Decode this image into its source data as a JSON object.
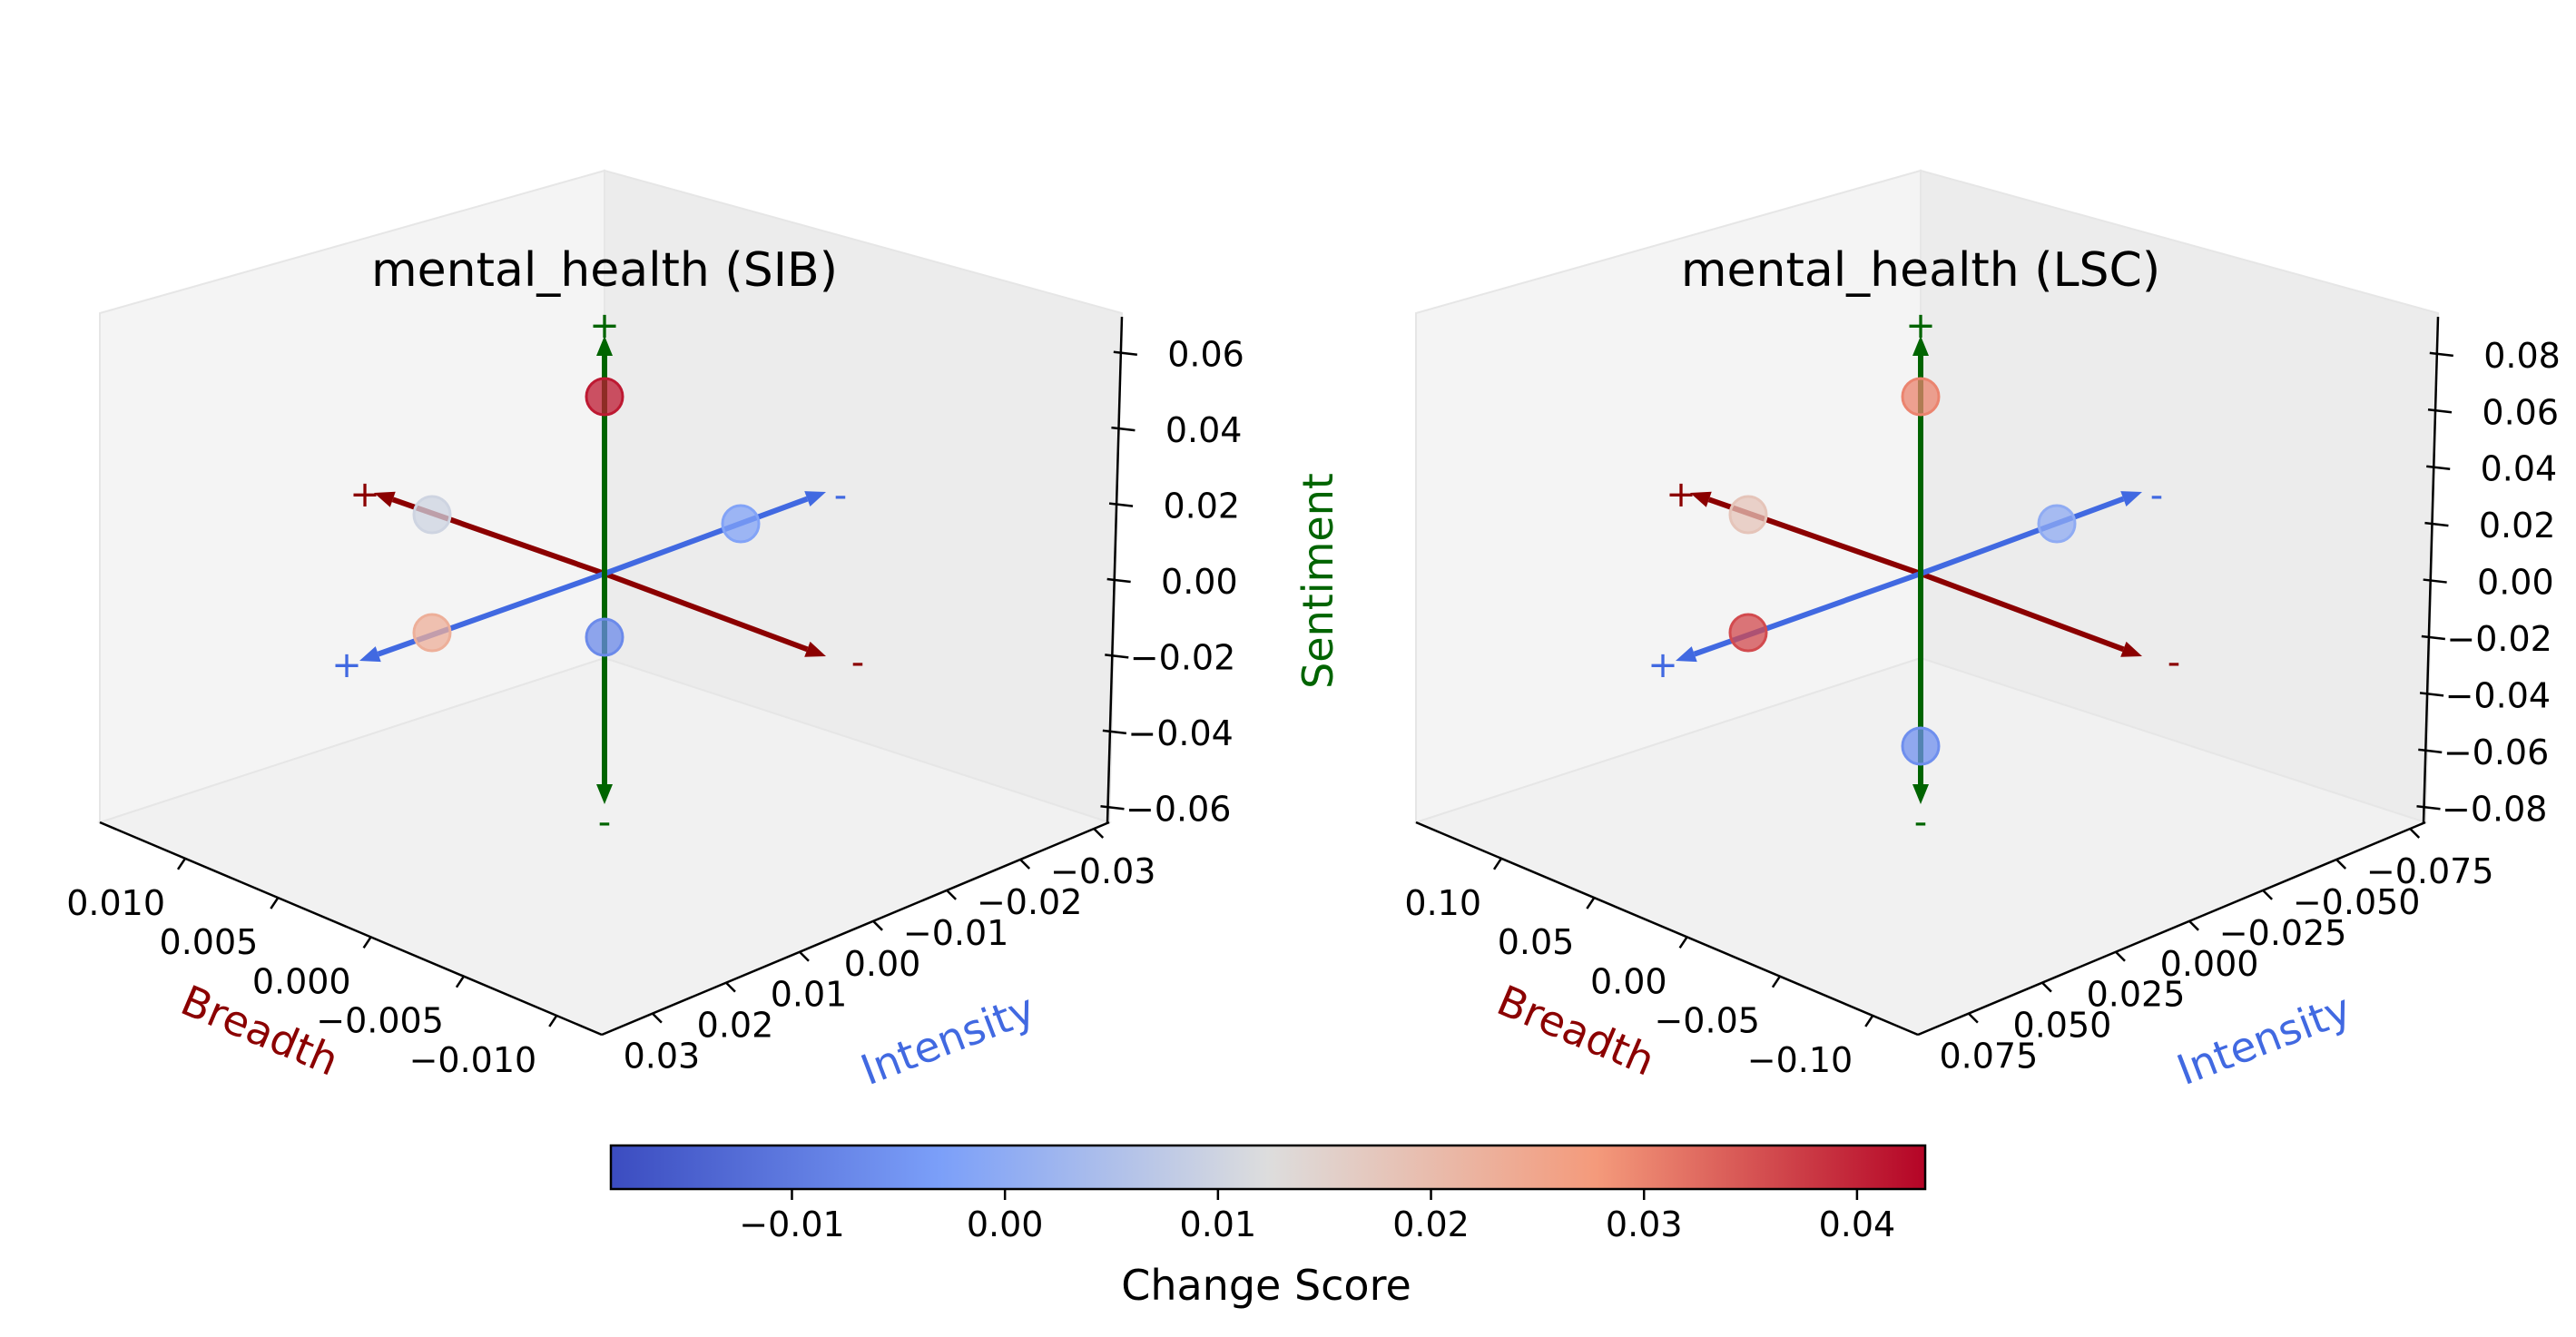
{
  "chart_data": [
    {
      "type": "scatter",
      "subtype": "3d",
      "title": "mental_health (SIB)",
      "axis_labels": {
        "breadth": "Breadth",
        "intensity": "Intensity",
        "sentiment": "Sentiment"
      },
      "axis_colors": {
        "breadth": "#8b0000",
        "intensity": "#4169e1",
        "sentiment": "#006400"
      },
      "sign_labels": {
        "plus": "+",
        "minus": "-"
      },
      "breadth_ticks": [
        "0.010",
        "0.005",
        "0.000",
        "−0.005",
        "−0.010"
      ],
      "intensity_ticks": [
        "0.03",
        "0.02",
        "0.01",
        "0.00",
        "−0.01",
        "−0.02",
        "−0.03"
      ],
      "sentiment_ticks": [
        "0.06",
        "0.04",
        "0.02",
        "0.00",
        "−0.02",
        "−0.04",
        "−0.06"
      ],
      "points": [
        {
          "axis": "sentiment",
          "direction": "+",
          "change_score": 0.041
        },
        {
          "axis": "breadth",
          "direction": "+",
          "change_score": 0.01
        },
        {
          "axis": "intensity",
          "direction": "-",
          "change_score": -0.002
        },
        {
          "axis": "intensity",
          "direction": "+",
          "change_score": 0.023
        },
        {
          "axis": "sentiment",
          "direction": "-",
          "change_score": -0.007
        }
      ]
    },
    {
      "type": "scatter",
      "subtype": "3d",
      "title": "mental_health (LSC)",
      "axis_labels": {
        "breadth": "Breadth",
        "intensity": "Intensity",
        "sentiment": ""
      },
      "axis_colors": {
        "breadth": "#8b0000",
        "intensity": "#4169e1",
        "sentiment": "#006400"
      },
      "sign_labels": {
        "plus": "+",
        "minus": "-"
      },
      "breadth_ticks": [
        "0.10",
        "0.05",
        "0.00",
        "−0.05",
        "−0.10"
      ],
      "intensity_ticks": [
        "0.075",
        "0.050",
        "0.025",
        "0.000",
        "−0.025",
        "−0.050",
        "−0.075"
      ],
      "sentiment_ticks": [
        "0.08",
        "0.06",
        "0.04",
        "0.02",
        "0.00",
        "−0.02",
        "−0.04",
        "−0.06",
        "−0.08"
      ],
      "points": [
        {
          "axis": "sentiment",
          "direction": "+",
          "change_score": 0.03
        },
        {
          "axis": "breadth",
          "direction": "+",
          "change_score": 0.018
        },
        {
          "axis": "intensity",
          "direction": "-",
          "change_score": 0.0
        },
        {
          "axis": "intensity",
          "direction": "+",
          "change_score": 0.036
        },
        {
          "axis": "sentiment",
          "direction": "-",
          "change_score": -0.006
        }
      ]
    }
  ],
  "colorbar": {
    "label": "Change Score",
    "range": [
      -0.0185,
      0.0432
    ],
    "ticks": [
      -0.01,
      0.0,
      0.01,
      0.02,
      0.03,
      0.04
    ],
    "tick_labels": [
      "−0.01",
      "0.00",
      "0.01",
      "0.02",
      "0.03",
      "0.04"
    ],
    "colormap": "coolwarm"
  }
}
